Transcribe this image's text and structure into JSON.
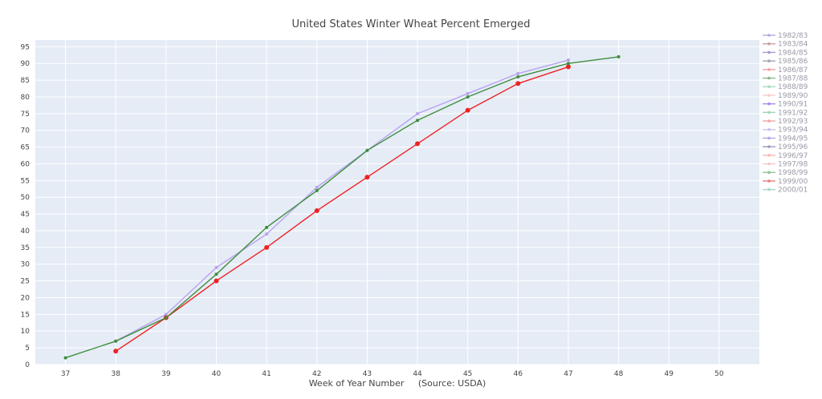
{
  "chart_data": {
    "type": "line",
    "title": "United States Winter Wheat Percent Emerged",
    "xlabel": "Week of Year Number     (Source: USDA)",
    "ylabel": "",
    "xlim": [
      36.4,
      50.8
    ],
    "ylim": [
      0,
      97
    ],
    "xticks": [
      37,
      38,
      39,
      40,
      41,
      42,
      43,
      44,
      45,
      46,
      47,
      48,
      49,
      50
    ],
    "yticks": [
      0,
      5,
      10,
      15,
      20,
      25,
      30,
      35,
      40,
      45,
      50,
      55,
      60,
      65,
      70,
      75,
      80,
      85,
      90,
      95
    ],
    "grid": true,
    "legend_position": "right",
    "legend": [
      {
        "name": "1982/83",
        "color": "#b9a8e0"
      },
      {
        "name": "1983/84",
        "color": "#c8a2a2"
      },
      {
        "name": "1984/85",
        "color": "#a59bd0"
      },
      {
        "name": "1985/86",
        "color": "#9da5b8"
      },
      {
        "name": "1986/87",
        "color": "#f2a0a0"
      },
      {
        "name": "1987/88",
        "color": "#88b888"
      },
      {
        "name": "1988/89",
        "color": "#a8dcc0"
      },
      {
        "name": "1989/90",
        "color": "#f5cccc"
      },
      {
        "name": "1990/91",
        "color": "#a78bea"
      },
      {
        "name": "1991/92",
        "color": "#9dd8b8"
      },
      {
        "name": "1992/93",
        "color": "#f0a4a4"
      },
      {
        "name": "1993/94",
        "color": "#cbc4ee"
      },
      {
        "name": "1994/95",
        "color": "#b5a8e6"
      },
      {
        "name": "1995/96",
        "color": "#9c9cc0"
      },
      {
        "name": "1996/97",
        "color": "#f5b8b0"
      },
      {
        "name": "1997/98",
        "color": "#f2c8c8"
      },
      {
        "name": "1998/99",
        "color": "#8fc48f"
      },
      {
        "name": "1999/00",
        "color": "#ef7d7d"
      },
      {
        "name": "2000/01",
        "color": "#a6d8c6"
      }
    ],
    "series": [
      {
        "color": "#b9a2ee",
        "x": [
          38,
          39,
          40,
          41,
          42,
          43,
          44,
          45,
          46,
          47
        ],
        "y": [
          7,
          15,
          29,
          39,
          53,
          64,
          75,
          81,
          87,
          91
        ]
      },
      {
        "color": "#ee2222",
        "x": [
          38,
          39,
          40,
          41,
          42,
          43,
          44,
          45,
          46,
          47
        ],
        "y": [
          4,
          14,
          25,
          35,
          46,
          56,
          66,
          76,
          84,
          89
        ]
      },
      {
        "color": "#3e8e3e",
        "x": [
          37,
          38,
          39,
          40,
          41,
          42,
          43,
          44,
          45,
          46,
          47,
          48
        ],
        "y": [
          2,
          7,
          14,
          27,
          41,
          52,
          64,
          73,
          80,
          86,
          90,
          92
        ]
      }
    ]
  }
}
